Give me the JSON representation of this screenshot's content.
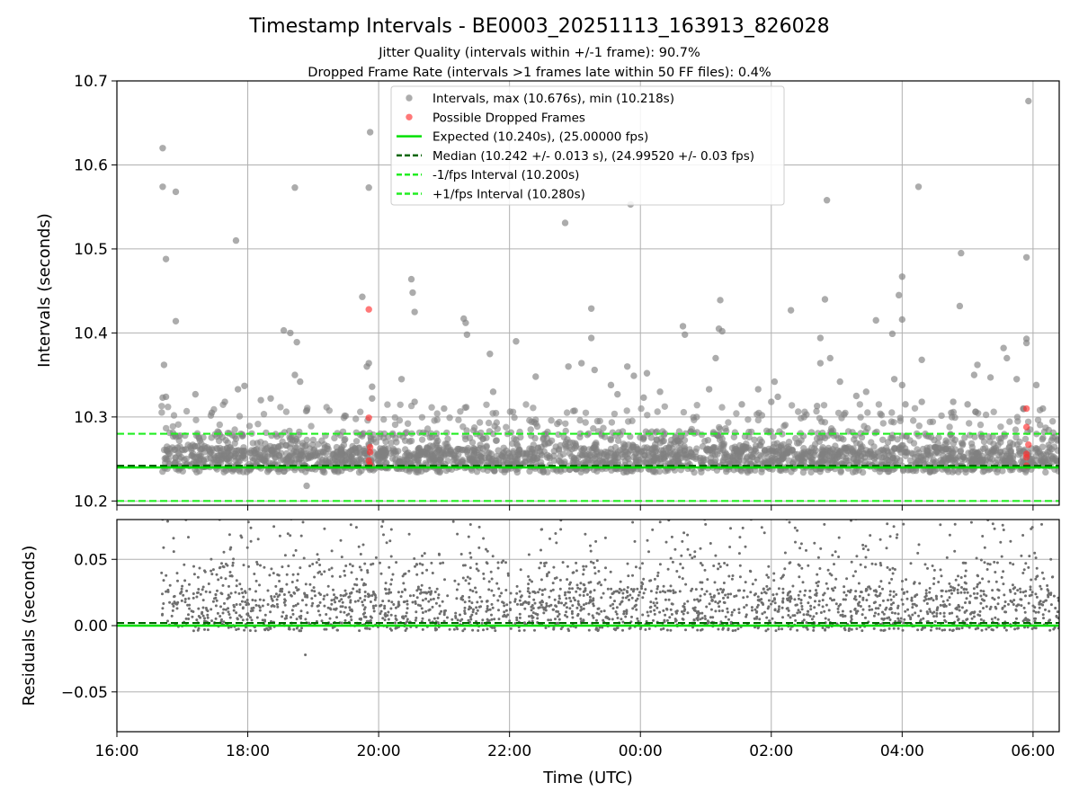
{
  "chart_data": {
    "type": "scatter",
    "title": "Timestamp Intervals - BE0003_20251113_163913_826028",
    "subtitle_lines": [
      "Jitter Quality (intervals within +/-1 frame): 90.7%",
      "Dropped Frame Rate (intervals >1 frames late within 50 FF files): 0.4%"
    ],
    "top_panel": {
      "ylabel": "Intervals (seconds)",
      "ylim": [
        10.195,
        10.7
      ],
      "yticks": [
        10.2,
        10.3,
        10.4,
        10.5,
        10.6,
        10.7
      ],
      "ytick_labels": [
        "10.2",
        "10.3",
        "10.4",
        "10.5",
        "10.6",
        "10.7"
      ],
      "grid": true,
      "expected": 10.24,
      "median": 10.242,
      "lower_interval": 10.2,
      "upper_interval": 10.28,
      "outliers": [
        [
          16.7,
          10.62
        ],
        [
          16.7,
          10.574
        ],
        [
          16.75,
          10.488
        ],
        [
          16.9,
          10.568
        ],
        [
          16.9,
          10.414
        ],
        [
          16.72,
          10.362
        ],
        [
          16.7,
          10.323
        ],
        [
          16.75,
          10.324
        ],
        [
          17.2,
          10.327
        ],
        [
          17.45,
          10.305
        ],
        [
          17.65,
          10.318
        ],
        [
          17.82,
          10.51
        ],
        [
          17.85,
          10.333
        ],
        [
          17.95,
          10.337
        ],
        [
          18.2,
          10.32
        ],
        [
          18.35,
          10.322
        ],
        [
          18.55,
          10.403
        ],
        [
          18.65,
          10.4
        ],
        [
          18.72,
          10.573
        ],
        [
          18.75,
          10.389
        ],
        [
          18.72,
          10.35
        ],
        [
          18.8,
          10.342
        ],
        [
          18.9,
          10.218
        ],
        [
          19.75,
          10.443
        ],
        [
          19.82,
          10.36
        ],
        [
          19.85,
          10.364
        ],
        [
          19.85,
          10.573
        ],
        [
          19.87,
          10.639
        ],
        [
          19.9,
          10.336
        ],
        [
          19.9,
          10.322
        ],
        [
          20.35,
          10.345
        ],
        [
          20.5,
          10.464
        ],
        [
          20.52,
          10.448
        ],
        [
          20.55,
          10.425
        ],
        [
          20.55,
          10.318
        ],
        [
          21.0,
          10.31
        ],
        [
          21.3,
          10.417
        ],
        [
          21.33,
          10.412
        ],
        [
          21.35,
          10.398
        ],
        [
          21.7,
          10.375
        ],
        [
          21.75,
          10.33
        ],
        [
          22.1,
          10.39
        ],
        [
          22.4,
          10.348
        ],
        [
          22.85,
          10.531
        ],
        [
          22.9,
          10.36
        ],
        [
          23.1,
          10.364
        ],
        [
          23.25,
          10.429
        ],
        [
          23.25,
          10.394
        ],
        [
          23.3,
          10.356
        ],
        [
          23.55,
          10.338
        ],
        [
          23.65,
          10.327
        ],
        [
          23.8,
          10.36
        ],
        [
          23.9,
          10.349
        ],
        [
          23.85,
          10.553
        ],
        [
          24.05,
          10.323
        ],
        [
          24.1,
          10.352
        ],
        [
          24.3,
          10.33
        ],
        [
          24.65,
          10.408
        ],
        [
          24.68,
          10.398
        ],
        [
          25.05,
          10.333
        ],
        [
          25.15,
          10.37
        ],
        [
          25.2,
          10.405
        ],
        [
          25.22,
          10.439
        ],
        [
          25.25,
          10.402
        ],
        [
          25.55,
          10.315
        ],
        [
          25.8,
          10.333
        ],
        [
          26.0,
          10.318
        ],
        [
          26.05,
          10.342
        ],
        [
          26.1,
          10.324
        ],
        [
          26.3,
          10.427
        ],
        [
          26.7,
          10.313
        ],
        [
          26.75,
          10.394
        ],
        [
          26.75,
          10.364
        ],
        [
          26.82,
          10.44
        ],
        [
          26.85,
          10.558
        ],
        [
          26.9,
          10.37
        ],
        [
          27.05,
          10.342
        ],
        [
          27.3,
          10.325
        ],
        [
          27.45,
          10.33
        ],
        [
          27.6,
          10.415
        ],
        [
          27.85,
          10.399
        ],
        [
          27.88,
          10.345
        ],
        [
          27.95,
          10.445
        ],
        [
          28.0,
          10.467
        ],
        [
          28.0,
          10.416
        ],
        [
          28.0,
          10.338
        ],
        [
          28.05,
          10.315
        ],
        [
          28.25,
          10.574
        ],
        [
          28.3,
          10.368
        ],
        [
          28.3,
          10.318
        ],
        [
          28.75,
          10.305
        ],
        [
          28.78,
          10.318
        ],
        [
          28.88,
          10.432
        ],
        [
          28.9,
          10.495
        ],
        [
          29.0,
          10.315
        ],
        [
          29.15,
          10.362
        ],
        [
          29.1,
          10.35
        ],
        [
          29.35,
          10.347
        ],
        [
          29.55,
          10.382
        ],
        [
          29.6,
          10.37
        ],
        [
          29.75,
          10.345
        ],
        [
          29.85,
          10.31
        ],
        [
          29.9,
          10.49
        ],
        [
          29.9,
          10.393
        ],
        [
          29.9,
          10.388
        ],
        [
          29.93,
          10.676
        ],
        [
          30.05,
          10.338
        ],
        [
          30.15,
          10.31
        ]
      ],
      "dropped_frames": [
        [
          19.85,
          10.428
        ],
        [
          19.85,
          10.299
        ],
        [
          19.87,
          10.264
        ],
        [
          19.87,
          10.258
        ],
        [
          19.85,
          10.248
        ],
        [
          19.87,
          10.243
        ],
        [
          29.9,
          10.31
        ],
        [
          29.9,
          10.288
        ],
        [
          29.93,
          10.267
        ],
        [
          29.9,
          10.256
        ],
        [
          29.9,
          10.252
        ],
        [
          29.9,
          10.242
        ]
      ],
      "legend": [
        "Intervals, max (10.676s), min (10.218s)",
        "Possible Dropped Frames",
        "Expected (10.240s), (25.00000 fps)",
        "Median (10.242 +/- 0.013 s), (24.99520 +/- 0.03 fps)",
        "-1/fps Interval (10.200s)",
        "+1/fps Interval (10.280s)"
      ],
      "legend_placement": "top-center"
    },
    "bottom_panel": {
      "ylabel": "Residuals (seconds)",
      "ylim": [
        -0.08,
        0.08
      ],
      "yticks": [
        -0.05,
        0.0,
        0.05
      ],
      "ytick_labels": [
        "−0.05",
        "0.00",
        "0.05"
      ],
      "grid": true,
      "expected": 0.0,
      "median": 0.002
    },
    "x_axis": {
      "xlabel": "Time (UTC)",
      "xlim": [
        16.0,
        30.4
      ],
      "data_start": 16.68,
      "data_end": 30.4,
      "xticks": [
        16,
        18,
        20,
        22,
        24,
        26,
        28,
        30
      ],
      "xtick_labels": [
        "16:00",
        "18:00",
        "20:00",
        "22:00",
        "00:00",
        "02:00",
        "04:00",
        "06:00"
      ]
    },
    "colors": {
      "intervals": "#808080",
      "dropped": "#ff3030",
      "expected": "#00e000",
      "median": "#006400",
      "fps_interval": "#22ee22",
      "grid": "#b0b0b0"
    }
  }
}
